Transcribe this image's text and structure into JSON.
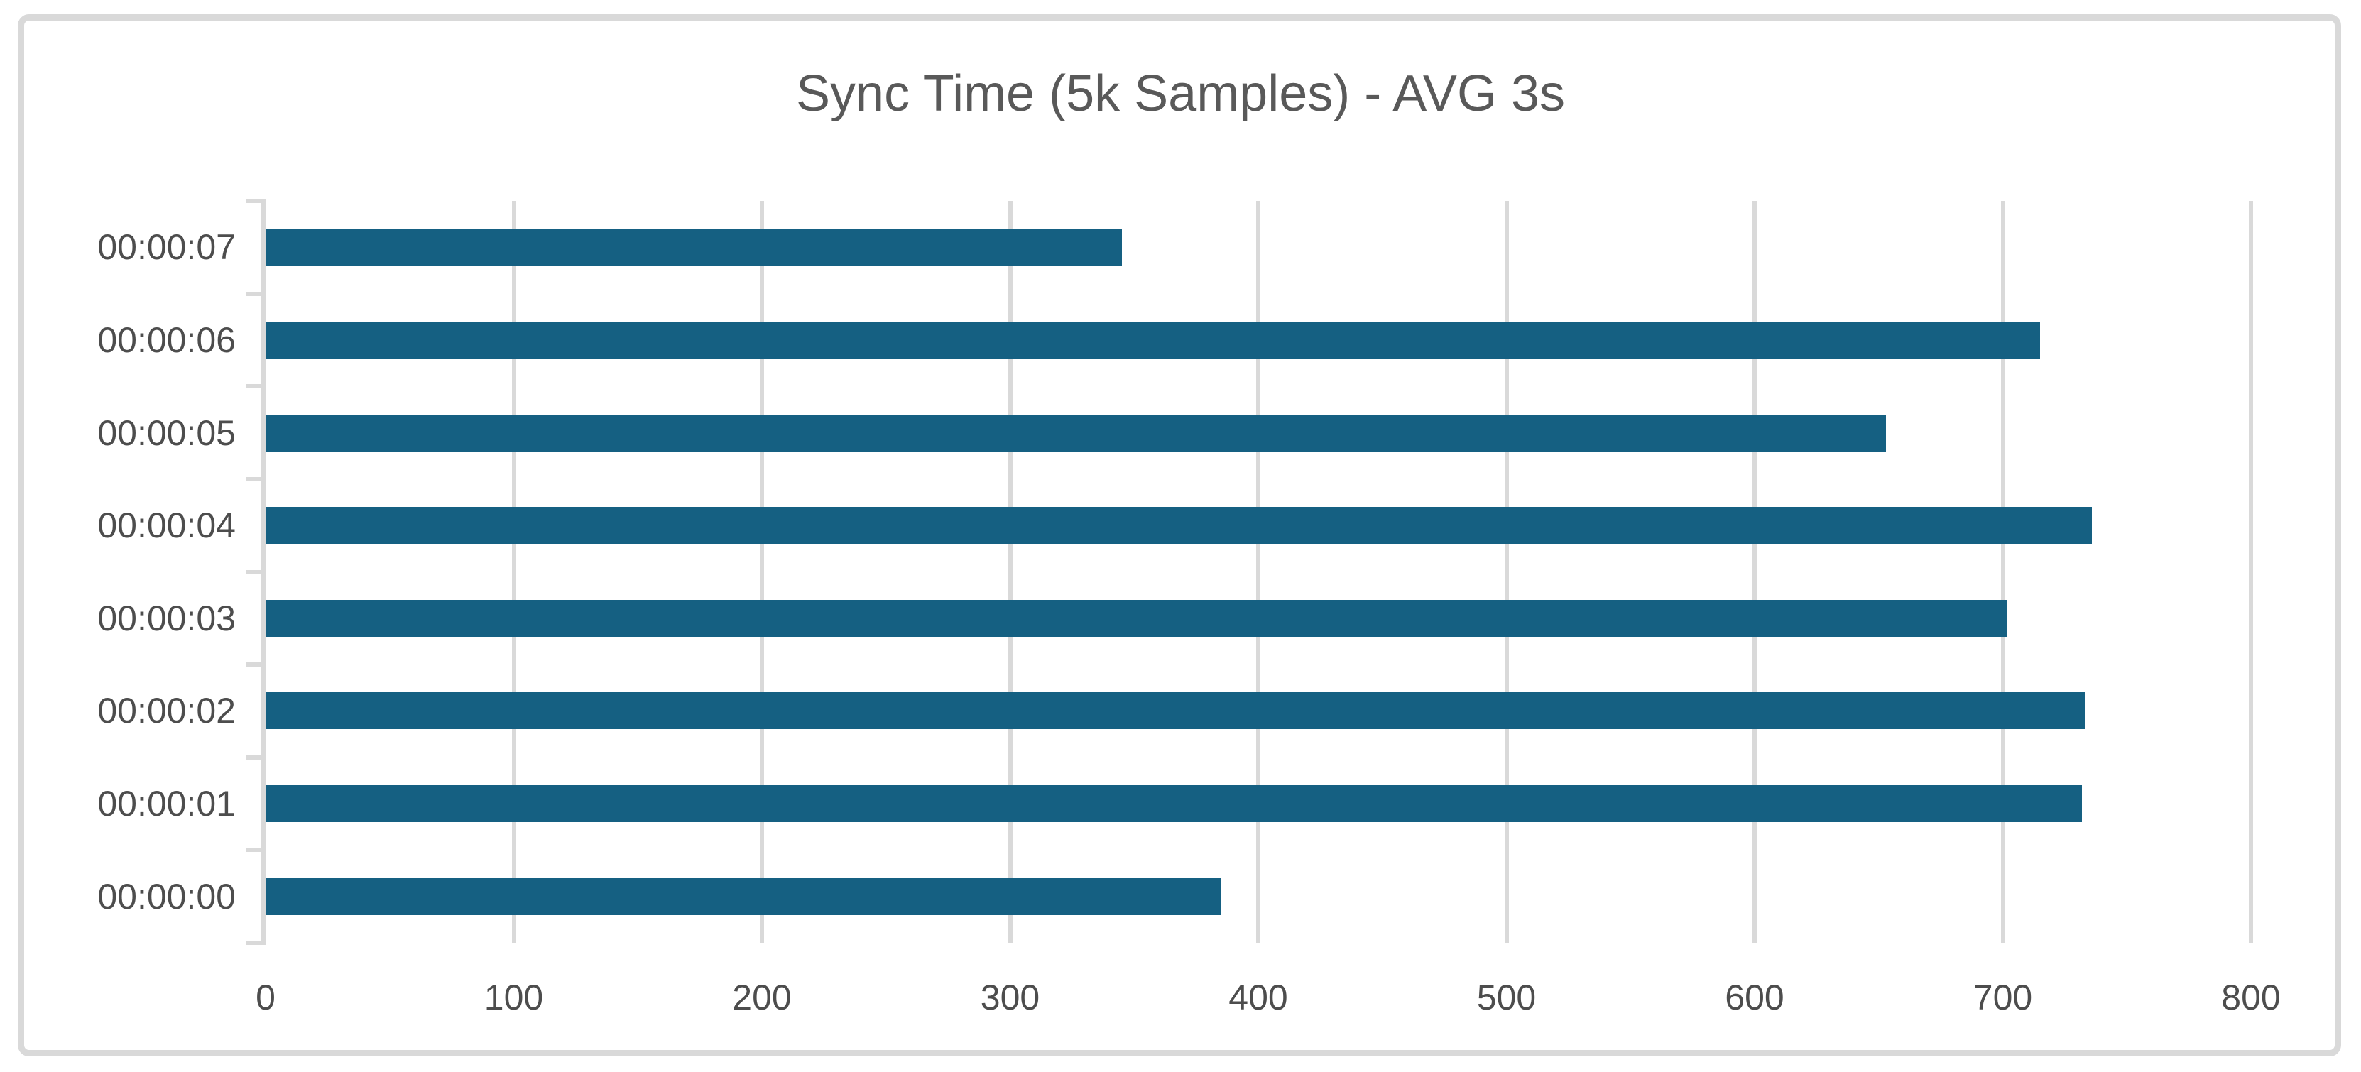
{
  "chart_data": {
    "type": "bar",
    "orientation": "horizontal",
    "title": "Sync Time (5k Samples) - AVG 3s",
    "categories": [
      "00:00:07",
      "00:00:06",
      "00:00:05",
      "00:00:04",
      "00:00:03",
      "00:00:02",
      "00:00:01",
      "00:00:00"
    ],
    "values": [
      345,
      715,
      653,
      736,
      702,
      733,
      732,
      385
    ],
    "row_order": "top-to-bottom",
    "xlabel": "",
    "ylabel": "",
    "xlim": [
      0,
      800
    ],
    "x_ticks": [
      0,
      100,
      200,
      300,
      400,
      500,
      600,
      700,
      800
    ],
    "grid": true,
    "legend": false,
    "colors": {
      "bar": "#156082",
      "gridline": "#D9D9D9",
      "axis": "#D9D9D9",
      "title_text": "#595959",
      "tick_text": "#4D4D4D",
      "frame_border": "#D9D9D9",
      "background": "#FFFFFF"
    }
  }
}
